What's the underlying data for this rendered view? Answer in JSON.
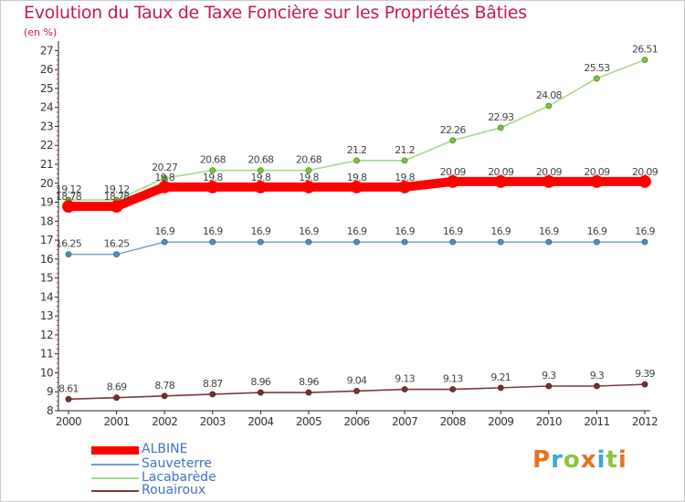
{
  "title": "Evolution du Taux de Taxe Foncière sur les Propriétés Bâties",
  "subtitle": "(en %)",
  "logo": {
    "text": "Proxiti",
    "colors": [
      "#e8731f",
      "#3aa6d9",
      "#8cc63f",
      "#e8731f",
      "#3aa6d9",
      "#8cc63f",
      "#e8731f"
    ]
  },
  "chart_data": {
    "type": "line",
    "title": "Evolution du Taux de Taxe Foncière sur les Propriétés Bâties",
    "ylabel": "(en %)",
    "xlabel": "",
    "x": [
      "2000",
      "2001",
      "2002",
      "2003",
      "2004",
      "2005",
      "2006",
      "2007",
      "2008",
      "2009",
      "2010",
      "2011",
      "2012"
    ],
    "ylim": [
      8,
      27.5
    ],
    "yticks": [
      "8",
      "9",
      "10",
      "11",
      "12",
      "13",
      "14",
      "15",
      "16",
      "17",
      "18",
      "19",
      "20",
      "21",
      "22",
      "23",
      "24",
      "25",
      "26",
      "27"
    ],
    "grid": false,
    "legend": "bottom-left",
    "series": [
      {
        "name": "ALBINE",
        "color": "#ff0000",
        "values": [
          18.78,
          18.78,
          19.8,
          19.8,
          19.8,
          19.8,
          19.8,
          19.8,
          20.09,
          20.09,
          20.09,
          20.09,
          20.09
        ],
        "labels": [
          "18.78",
          "18.78",
          "19.8",
          "19.8",
          "19.8",
          "19.8",
          "19.8",
          "19.8",
          "20.09",
          "20.09",
          "20.09",
          "20.09",
          "20.09"
        ]
      },
      {
        "name": "Sauveterre",
        "color": "#6f9fc8",
        "values": [
          16.25,
          16.25,
          16.9,
          16.9,
          16.9,
          16.9,
          16.9,
          16.9,
          16.9,
          16.9,
          16.9,
          16.9,
          16.9
        ],
        "labels": [
          "16.25",
          "16.25",
          "16.9",
          "16.9",
          "16.9",
          "16.9",
          "16.9",
          "16.9",
          "16.9",
          "16.9",
          "16.9",
          "16.9",
          "16.9"
        ]
      },
      {
        "name": "Lacabarède",
        "color": "#a8d88a",
        "values": [
          19.12,
          19.12,
          20.27,
          20.68,
          20.68,
          20.68,
          21.2,
          21.2,
          22.26,
          22.93,
          24.08,
          25.53,
          26.51
        ],
        "labels": [
          "19.12",
          "19.12",
          "20.27",
          "20.68",
          "20.68",
          "20.68",
          "21.2",
          "21.2",
          "22.26",
          "22.93",
          "24.08",
          "25.53",
          "26.51"
        ]
      },
      {
        "name": "Rouairoux",
        "color": "#7b3a3a",
        "values": [
          8.61,
          8.69,
          8.78,
          8.87,
          8.96,
          8.96,
          9.04,
          9.13,
          9.13,
          9.21,
          9.3,
          9.3,
          9.39
        ],
        "labels": [
          "8.61",
          "8.69",
          "8.78",
          "8.87",
          "8.96",
          "8.96",
          "9.04",
          "9.13",
          "9.13",
          "9.21",
          "9.3",
          "9.3",
          "9.39"
        ]
      }
    ]
  }
}
